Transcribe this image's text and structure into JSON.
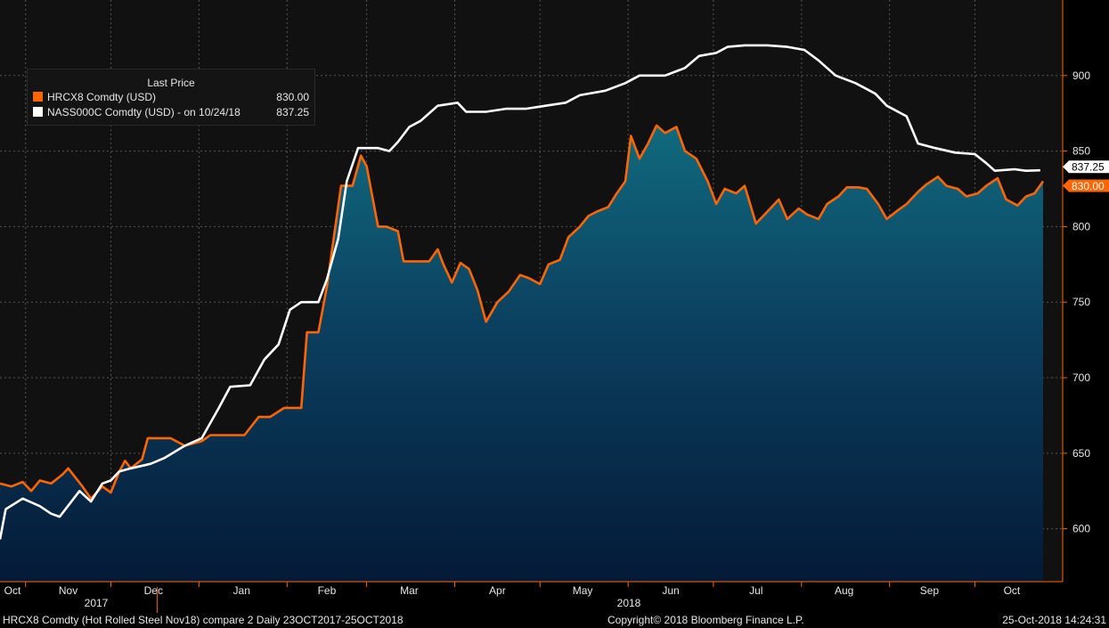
{
  "legend": {
    "title": "Last Price",
    "items": [
      {
        "name": "HRCX8 Comdty (USD)",
        "value": "830.00",
        "color": "#ff6600"
      },
      {
        "name": "NASS000C Comdty (USD) -  on 10/24/18",
        "value": "837.25",
        "color": "#ffffff"
      }
    ]
  },
  "footer": {
    "left": "HRCX8 Comdty (Hot Rolled Steel  Nov18) compare 2  Daily 23OCT2017-25OCT2018",
    "center": "Copyright© 2018 Bloomberg Finance L.P.",
    "right": "25-Oct-2018 14:24:31"
  },
  "chart_data": {
    "type": "line",
    "title": "",
    "xlabel": "",
    "ylabel": "",
    "x_tick_labels": [
      "Oct",
      "Nov",
      "Dec",
      "Jan",
      "Feb",
      "Mar",
      "Apr",
      "May",
      "Jun",
      "Jul",
      "Aug",
      "Sep",
      "Oct"
    ],
    "year_labels": [
      "2017",
      "2018"
    ],
    "y_ticks": [
      600,
      650,
      700,
      750,
      800,
      850,
      900
    ],
    "ylim": [
      565,
      950
    ],
    "xlim": [
      "2017-10-23",
      "2018-10-25"
    ],
    "grid": true,
    "legend_position": "top-left",
    "last_value_labels": [
      {
        "series": "NASS000C Comdty (USD)",
        "value": "837.25",
        "color": "#ffffff"
      },
      {
        "series": "HRCX8 Comdty (USD)",
        "value": "830.00",
        "color": "#ff6600"
      }
    ],
    "series": [
      {
        "name": "HRCX8 Comdty (USD)",
        "color": "#ff6600",
        "area_fill": true,
        "points": [
          [
            "2017-10-23",
            630
          ],
          [
            "2017-10-27",
            628
          ],
          [
            "2017-10-31",
            631
          ],
          [
            "2017-11-03",
            625
          ],
          [
            "2017-11-06",
            632
          ],
          [
            "2017-11-10",
            630
          ],
          [
            "2017-11-14",
            636
          ],
          [
            "2017-11-16",
            640
          ],
          [
            "2017-11-21",
            628
          ],
          [
            "2017-11-24",
            620
          ],
          [
            "2017-11-28",
            628
          ],
          [
            "2017-12-01",
            624
          ],
          [
            "2017-12-04",
            638
          ],
          [
            "2017-12-06",
            645
          ],
          [
            "2017-12-08",
            640
          ],
          [
            "2017-12-12",
            646
          ],
          [
            "2017-12-14",
            660
          ],
          [
            "2017-12-19",
            660
          ],
          [
            "2017-12-22",
            660
          ],
          [
            "2017-12-27",
            655
          ],
          [
            "2018-01-02",
            658
          ],
          [
            "2018-01-05",
            662
          ],
          [
            "2018-01-10",
            662
          ],
          [
            "2018-01-17",
            662
          ],
          [
            "2018-01-22",
            674
          ],
          [
            "2018-01-26",
            674
          ],
          [
            "2018-01-31",
            680
          ],
          [
            "2018-02-02",
            680
          ],
          [
            "2018-02-06",
            680
          ],
          [
            "2018-02-08",
            730
          ],
          [
            "2018-02-12",
            730
          ],
          [
            "2018-02-15",
            760
          ],
          [
            "2018-02-20",
            827
          ],
          [
            "2018-02-24",
            827
          ],
          [
            "2018-02-27",
            847
          ],
          [
            "2018-03-01",
            840
          ],
          [
            "2018-03-05",
            800
          ],
          [
            "2018-03-08",
            800
          ],
          [
            "2018-03-12",
            797
          ],
          [
            "2018-03-14",
            777
          ],
          [
            "2018-03-20",
            777
          ],
          [
            "2018-03-23",
            777
          ],
          [
            "2018-03-26",
            785
          ],
          [
            "2018-03-28",
            775
          ],
          [
            "2018-03-31",
            763
          ],
          [
            "2018-04-03",
            776
          ],
          [
            "2018-04-06",
            772
          ],
          [
            "2018-04-09",
            758
          ],
          [
            "2018-04-12",
            737
          ],
          [
            "2018-04-16",
            750
          ],
          [
            "2018-04-20",
            757
          ],
          [
            "2018-04-24",
            768
          ],
          [
            "2018-04-27",
            766
          ],
          [
            "2018-05-01",
            762
          ],
          [
            "2018-05-04",
            775
          ],
          [
            "2018-05-08",
            778
          ],
          [
            "2018-05-11",
            793
          ],
          [
            "2018-05-15",
            800
          ],
          [
            "2018-05-18",
            807
          ],
          [
            "2018-05-21",
            810
          ],
          [
            "2018-05-25",
            813
          ],
          [
            "2018-05-28",
            822
          ],
          [
            "2018-05-31",
            830
          ],
          [
            "2018-06-02",
            860
          ],
          [
            "2018-06-05",
            845
          ],
          [
            "2018-06-08",
            855
          ],
          [
            "2018-06-11",
            867
          ],
          [
            "2018-06-14",
            862
          ],
          [
            "2018-06-18",
            866
          ],
          [
            "2018-06-21",
            850
          ],
          [
            "2018-06-25",
            845
          ],
          [
            "2018-06-29",
            830
          ],
          [
            "2018-07-02",
            815
          ],
          [
            "2018-07-05",
            825
          ],
          [
            "2018-07-09",
            822
          ],
          [
            "2018-07-12",
            827
          ],
          [
            "2018-07-16",
            802
          ],
          [
            "2018-07-20",
            810
          ],
          [
            "2018-07-24",
            818
          ],
          [
            "2018-07-27",
            805
          ],
          [
            "2018-07-31",
            812
          ],
          [
            "2018-08-03",
            808
          ],
          [
            "2018-08-07",
            805
          ],
          [
            "2018-08-10",
            815
          ],
          [
            "2018-08-14",
            820
          ],
          [
            "2018-08-17",
            826
          ],
          [
            "2018-08-21",
            826
          ],
          [
            "2018-08-24",
            825
          ],
          [
            "2018-08-28",
            815
          ],
          [
            "2018-08-31",
            805
          ],
          [
            "2018-09-04",
            811
          ],
          [
            "2018-09-07",
            815
          ],
          [
            "2018-09-11",
            823
          ],
          [
            "2018-09-14",
            828
          ],
          [
            "2018-09-18",
            833
          ],
          [
            "2018-09-21",
            827
          ],
          [
            "2018-09-25",
            825
          ],
          [
            "2018-09-28",
            820
          ],
          [
            "2018-10-02",
            822
          ],
          [
            "2018-10-05",
            827
          ],
          [
            "2018-10-09",
            832
          ],
          [
            "2018-10-12",
            818
          ],
          [
            "2018-10-16",
            814
          ],
          [
            "2018-10-19",
            820
          ],
          [
            "2018-10-22",
            822
          ],
          [
            "2018-10-25",
            830
          ]
        ]
      },
      {
        "name": "NASS000C Comdty (USD)",
        "color": "#ffffff",
        "area_fill": false,
        "points": [
          [
            "2017-10-23",
            593
          ],
          [
            "2017-10-25",
            613
          ],
          [
            "2017-10-31",
            620
          ],
          [
            "2017-11-06",
            615
          ],
          [
            "2017-11-10",
            610
          ],
          [
            "2017-11-13",
            608
          ],
          [
            "2017-11-20",
            625
          ],
          [
            "2017-11-24",
            618
          ],
          [
            "2017-11-28",
            630
          ],
          [
            "2017-12-01",
            632
          ],
          [
            "2017-12-04",
            638
          ],
          [
            "2017-12-08",
            640
          ],
          [
            "2017-12-15",
            643
          ],
          [
            "2017-12-20",
            647
          ],
          [
            "2017-12-27",
            655
          ],
          [
            "2018-01-02",
            660
          ],
          [
            "2018-01-08",
            680
          ],
          [
            "2018-01-12",
            694
          ],
          [
            "2018-01-19",
            695
          ],
          [
            "2018-01-24",
            712
          ],
          [
            "2018-01-29",
            722
          ],
          [
            "2018-02-02",
            745
          ],
          [
            "2018-02-06",
            750
          ],
          [
            "2018-02-12",
            750
          ],
          [
            "2018-02-15",
            765
          ],
          [
            "2018-02-19",
            792
          ],
          [
            "2018-02-22",
            830
          ],
          [
            "2018-02-26",
            852
          ],
          [
            "2018-03-05",
            852
          ],
          [
            "2018-03-09",
            850
          ],
          [
            "2018-03-12",
            856
          ],
          [
            "2018-03-16",
            866
          ],
          [
            "2018-03-20",
            870
          ],
          [
            "2018-03-26",
            880
          ],
          [
            "2018-04-02",
            882
          ],
          [
            "2018-04-05",
            876
          ],
          [
            "2018-04-12",
            876
          ],
          [
            "2018-04-19",
            878
          ],
          [
            "2018-04-26",
            878
          ],
          [
            "2018-05-03",
            880
          ],
          [
            "2018-05-10",
            882
          ],
          [
            "2018-05-15",
            887
          ],
          [
            "2018-05-24",
            890
          ],
          [
            "2018-05-31",
            895
          ],
          [
            "2018-06-05",
            900
          ],
          [
            "2018-06-14",
            900
          ],
          [
            "2018-06-21",
            905
          ],
          [
            "2018-06-26",
            913
          ],
          [
            "2018-07-02",
            915
          ],
          [
            "2018-07-06",
            919
          ],
          [
            "2018-07-12",
            920
          ],
          [
            "2018-07-20",
            920
          ],
          [
            "2018-07-27",
            919
          ],
          [
            "2018-08-02",
            917
          ],
          [
            "2018-08-07",
            910
          ],
          [
            "2018-08-13",
            900
          ],
          [
            "2018-08-20",
            895
          ],
          [
            "2018-08-27",
            888
          ],
          [
            "2018-08-31",
            880
          ],
          [
            "2018-09-07",
            873
          ],
          [
            "2018-09-11",
            855
          ],
          [
            "2018-09-17",
            852
          ],
          [
            "2018-09-24",
            849
          ],
          [
            "2018-10-01",
            848
          ],
          [
            "2018-10-05",
            842
          ],
          [
            "2018-10-08",
            837
          ],
          [
            "2018-10-15",
            838
          ],
          [
            "2018-10-19",
            837
          ],
          [
            "2018-10-24",
            837.25
          ]
        ]
      }
    ]
  }
}
